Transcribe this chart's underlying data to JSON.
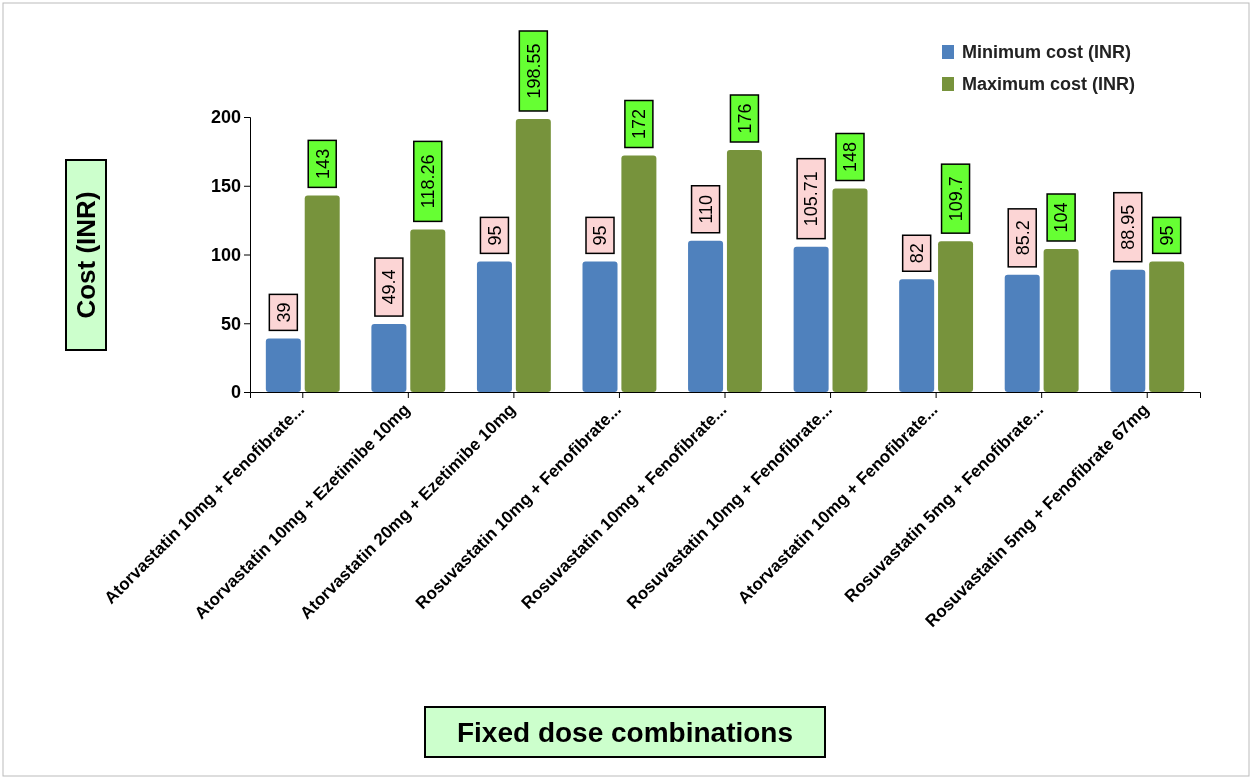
{
  "chart_data": {
    "type": "bar",
    "xlabel": "Fixed dose combinations",
    "ylabel": "Cost (INR)",
    "categories": [
      "Atorvastatin 10mg + Fenofibrate...",
      "Atorvastatin 10mg + Ezetimibe 10mg",
      "Atorvastatin 20mg + Ezetimibe 10mg",
      "Rosuvastatin 10mg + Fenofibrate...",
      "Rosuvastatin 10mg + Fenofibrate...",
      "Rosuvastatin 10mg + Fenofibrate...",
      "Atorvastatin 10mg + Fenofibrate...",
      "Rosuvastatin 5mg + Fenofibrate...",
      "Rosuvastatin 5mg + Fenofibrate 67mg"
    ],
    "series": [
      {
        "name": "Minimum cost (INR)",
        "color": "#4f81bd",
        "values": [
          39,
          49.4,
          95,
          95,
          110,
          105.71,
          82,
          85.2,
          88.95
        ]
      },
      {
        "name": "Maximum cost (INR)",
        "color": "#77933c",
        "values": [
          143,
          118.26,
          198.55,
          172,
          176,
          148,
          109.7,
          104,
          95
        ]
      }
    ],
    "ylim": [
      0,
      200
    ],
    "yticks": [
      0,
      50,
      100,
      150,
      200
    ],
    "grid": false,
    "legend": "top right",
    "data_labels": true
  }
}
